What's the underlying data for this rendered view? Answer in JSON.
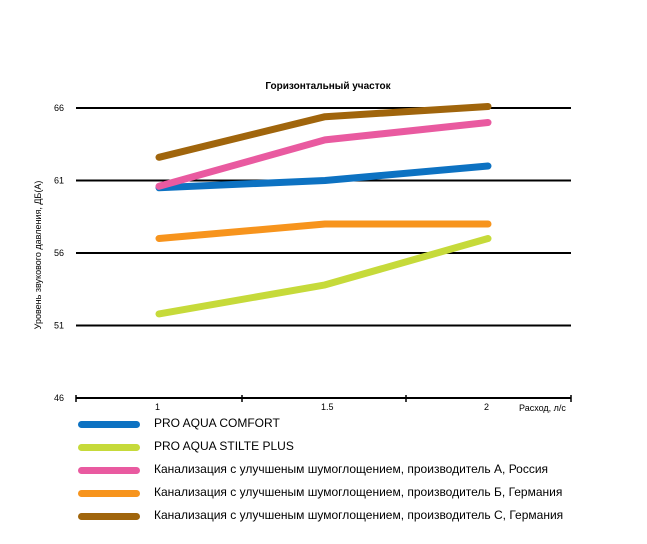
{
  "chart_data": {
    "type": "line",
    "title": "Горизонтальный  участок",
    "xlabel": "Расход, л/с",
    "ylabel": "Уровень звукового давления, ДБ(А)",
    "x": [
      1,
      1.5,
      2
    ],
    "x_tick_labels": [
      "1",
      "1.5",
      "2"
    ],
    "y_ticks": [
      46,
      51,
      56,
      61,
      66
    ],
    "ylim": [
      46,
      66
    ],
    "grid": true,
    "legend_position": "bottom",
    "series": [
      {
        "name": "PRO AQUA  COMFORT",
        "color": "#0d72c2",
        "values": [
          60.5,
          61,
          62
        ]
      },
      {
        "name": "PRO AQUA  STILTE PLUS",
        "color": "#c6da3a",
        "values": [
          51.8,
          53.8,
          57
        ]
      },
      {
        "name": "Канализация с улучшеным шумоглощением, производитель А, Россия",
        "color": "#e95aa0",
        "values": [
          60.6,
          63.8,
          65
        ]
      },
      {
        "name": "Канализация с улучшеным шумоглощением, производитель Б, Германия",
        "color": "#f7941d",
        "values": [
          57,
          58,
          58
        ]
      },
      {
        "name": "Канализация с улучшеным шумоглощением, производитель С, Германия",
        "color": "#a0650c",
        "values": [
          62.6,
          65.4,
          66.1
        ]
      }
    ]
  }
}
